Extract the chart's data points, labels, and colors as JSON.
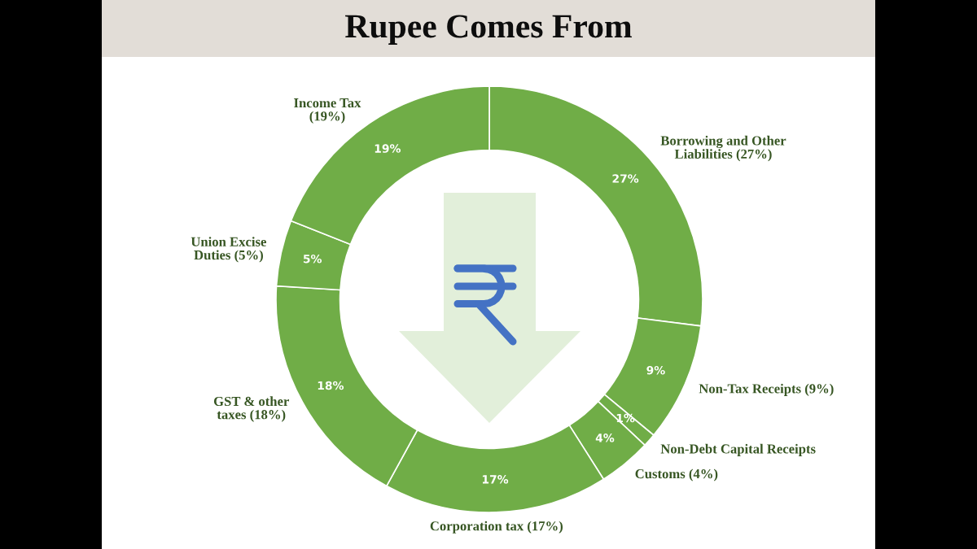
{
  "chart_data": {
    "type": "donut",
    "title": "Rupee Comes From",
    "categories": [
      "Borrowing and Other\nLiabilities (27%)",
      "Non-Tax Receipts (9%)",
      "Non-Debt Capital Receipts",
      "Customs (4%)",
      "Corporation tax (17%)",
      "GST & other\ntaxes (18%)",
      "Union Excise\nDuties (5%)",
      "Income Tax\n(19%)"
    ],
    "values": [
      27,
      9,
      1,
      4,
      17,
      18,
      5,
      19
    ],
    "colors": [
      "#70ad47",
      "#70ad47",
      "#70ad47",
      "#70ad47",
      "#70ad47",
      "#70ad47",
      "#70ad47",
      "#70ad47"
    ],
    "value_labels": [
      "27%",
      "9%",
      "1%",
      "4%",
      "17%",
      "18%",
      "5%",
      "19%"
    ]
  }
}
